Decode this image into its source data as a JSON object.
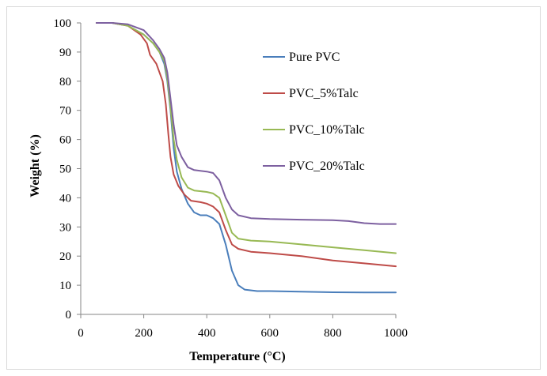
{
  "chart_data": {
    "type": "line",
    "title": "",
    "xlabel": "Temperature (°C)",
    "ylabel": "Weight (%)",
    "xlim": [
      0,
      1000
    ],
    "ylim": [
      0,
      100
    ],
    "x_ticks": [
      0,
      200,
      400,
      600,
      800,
      1000
    ],
    "y_ticks": [
      0,
      10,
      20,
      30,
      40,
      50,
      60,
      70,
      80,
      90,
      100
    ],
    "grid": false,
    "legend_position": "right",
    "series": [
      {
        "name": "Pure PVC",
        "color": "#4a7ebb",
        "points": [
          [
            50,
            100
          ],
          [
            100,
            100
          ],
          [
            150,
            99
          ],
          [
            200,
            96
          ],
          [
            230,
            93
          ],
          [
            250,
            90
          ],
          [
            265,
            86
          ],
          [
            275,
            80
          ],
          [
            285,
            70
          ],
          [
            295,
            57
          ],
          [
            305,
            49
          ],
          [
            320,
            43
          ],
          [
            340,
            38
          ],
          [
            360,
            35
          ],
          [
            380,
            34
          ],
          [
            400,
            34
          ],
          [
            420,
            33
          ],
          [
            440,
            31
          ],
          [
            460,
            24
          ],
          [
            480,
            15
          ],
          [
            500,
            10
          ],
          [
            520,
            8.5
          ],
          [
            560,
            8
          ],
          [
            600,
            8
          ],
          [
            700,
            7.8
          ],
          [
            800,
            7.6
          ],
          [
            900,
            7.5
          ],
          [
            1000,
            7.5
          ]
        ]
      },
      {
        "name": "PVC_5%Talc",
        "color": "#be4b48",
        "points": [
          [
            50,
            100
          ],
          [
            100,
            100
          ],
          [
            150,
            99
          ],
          [
            190,
            96
          ],
          [
            210,
            93
          ],
          [
            220,
            89
          ],
          [
            240,
            86
          ],
          [
            260,
            80
          ],
          [
            270,
            72
          ],
          [
            278,
            62
          ],
          [
            285,
            54
          ],
          [
            295,
            48
          ],
          [
            310,
            44
          ],
          [
            330,
            41
          ],
          [
            350,
            39
          ],
          [
            380,
            38.5
          ],
          [
            400,
            38
          ],
          [
            420,
            37
          ],
          [
            440,
            35
          ],
          [
            460,
            29
          ],
          [
            480,
            24
          ],
          [
            500,
            22.5
          ],
          [
            540,
            21.5
          ],
          [
            600,
            21
          ],
          [
            700,
            20
          ],
          [
            800,
            18.5
          ],
          [
            900,
            17.5
          ],
          [
            1000,
            16.5
          ]
        ]
      },
      {
        "name": "PVC_10%Talc",
        "color": "#98b954",
        "points": [
          [
            50,
            100
          ],
          [
            100,
            100
          ],
          [
            150,
            99
          ],
          [
            200,
            96
          ],
          [
            230,
            93
          ],
          [
            250,
            90
          ],
          [
            265,
            87
          ],
          [
            275,
            81
          ],
          [
            285,
            71
          ],
          [
            295,
            60
          ],
          [
            305,
            53
          ],
          [
            320,
            47
          ],
          [
            340,
            43.5
          ],
          [
            360,
            42.5
          ],
          [
            400,
            42
          ],
          [
            420,
            41.5
          ],
          [
            440,
            40
          ],
          [
            460,
            34
          ],
          [
            480,
            28
          ],
          [
            500,
            26
          ],
          [
            540,
            25.3
          ],
          [
            600,
            25
          ],
          [
            700,
            24
          ],
          [
            800,
            23
          ],
          [
            900,
            22
          ],
          [
            1000,
            21
          ]
        ]
      },
      {
        "name": "PVC_20%Talc",
        "color": "#7d60a0",
        "points": [
          [
            50,
            100
          ],
          [
            100,
            100
          ],
          [
            150,
            99.5
          ],
          [
            200,
            97.5
          ],
          [
            230,
            94
          ],
          [
            250,
            91
          ],
          [
            265,
            88
          ],
          [
            275,
            83
          ],
          [
            285,
            74
          ],
          [
            295,
            65
          ],
          [
            305,
            58
          ],
          [
            320,
            54
          ],
          [
            340,
            50.5
          ],
          [
            360,
            49.5
          ],
          [
            400,
            49
          ],
          [
            420,
            48.5
          ],
          [
            440,
            46
          ],
          [
            460,
            40
          ],
          [
            480,
            36
          ],
          [
            500,
            34
          ],
          [
            540,
            33
          ],
          [
            600,
            32.7
          ],
          [
            700,
            32.5
          ],
          [
            800,
            32.3
          ],
          [
            850,
            32
          ],
          [
            900,
            31.3
          ],
          [
            950,
            31
          ],
          [
            1000,
            31
          ]
        ]
      }
    ]
  }
}
